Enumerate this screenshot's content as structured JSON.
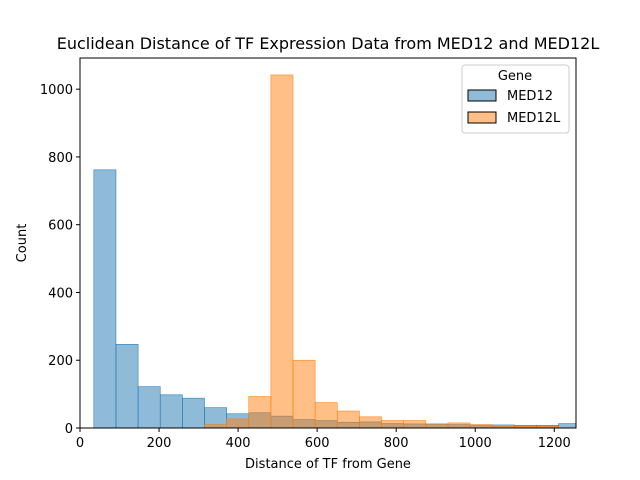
{
  "chart_data": {
    "type": "bar",
    "title": "Euclidean Distance of TF Expression Data from MED12 and MED12L",
    "xlabel": "Distance of TF from Gene",
    "ylabel": "Count",
    "xlim": [
      0,
      1255
    ],
    "ylim": [
      0,
      1092
    ],
    "xticks": [
      0,
      200,
      400,
      600,
      800,
      1000,
      1200
    ],
    "yticks": [
      0,
      200,
      400,
      600,
      800,
      1000
    ],
    "grid": false,
    "legend": {
      "title": "Gene",
      "placement": "top-right"
    },
    "series": [
      {
        "name": "MED12",
        "color": "#1f77b4",
        "bins": [
          [
            35,
            91,
            762
          ],
          [
            91,
            147,
            247
          ],
          [
            147,
            203,
            122
          ],
          [
            203,
            259,
            98
          ],
          [
            259,
            315,
            88
          ],
          [
            315,
            371,
            60
          ],
          [
            371,
            427,
            42
          ],
          [
            427,
            483,
            45
          ],
          [
            483,
            539,
            35
          ],
          [
            539,
            595,
            25
          ],
          [
            595,
            651,
            22
          ],
          [
            651,
            707,
            17
          ],
          [
            707,
            763,
            18
          ],
          [
            763,
            819,
            13
          ],
          [
            819,
            875,
            12
          ],
          [
            875,
            931,
            12
          ],
          [
            931,
            987,
            10
          ],
          [
            987,
            1043,
            9
          ],
          [
            1043,
            1099,
            9
          ],
          [
            1099,
            1155,
            8
          ],
          [
            1155,
            1211,
            8
          ],
          [
            1211,
            1267,
            13
          ]
        ]
      },
      {
        "name": "MED12L",
        "color": "#ff7f0e",
        "bins": [
          [
            315,
            371,
            10
          ],
          [
            371,
            427,
            27
          ],
          [
            427,
            483,
            93
          ],
          [
            483,
            539,
            1042
          ],
          [
            539,
            595,
            200
          ],
          [
            595,
            651,
            75
          ],
          [
            651,
            707,
            50
          ],
          [
            707,
            763,
            33
          ],
          [
            763,
            819,
            22
          ],
          [
            819,
            875,
            22
          ],
          [
            875,
            931,
            10
          ],
          [
            931,
            987,
            15
          ],
          [
            987,
            1043,
            10
          ],
          [
            1043,
            1099,
            5
          ],
          [
            1099,
            1155,
            5
          ],
          [
            1155,
            1211,
            5
          ]
        ]
      }
    ]
  }
}
